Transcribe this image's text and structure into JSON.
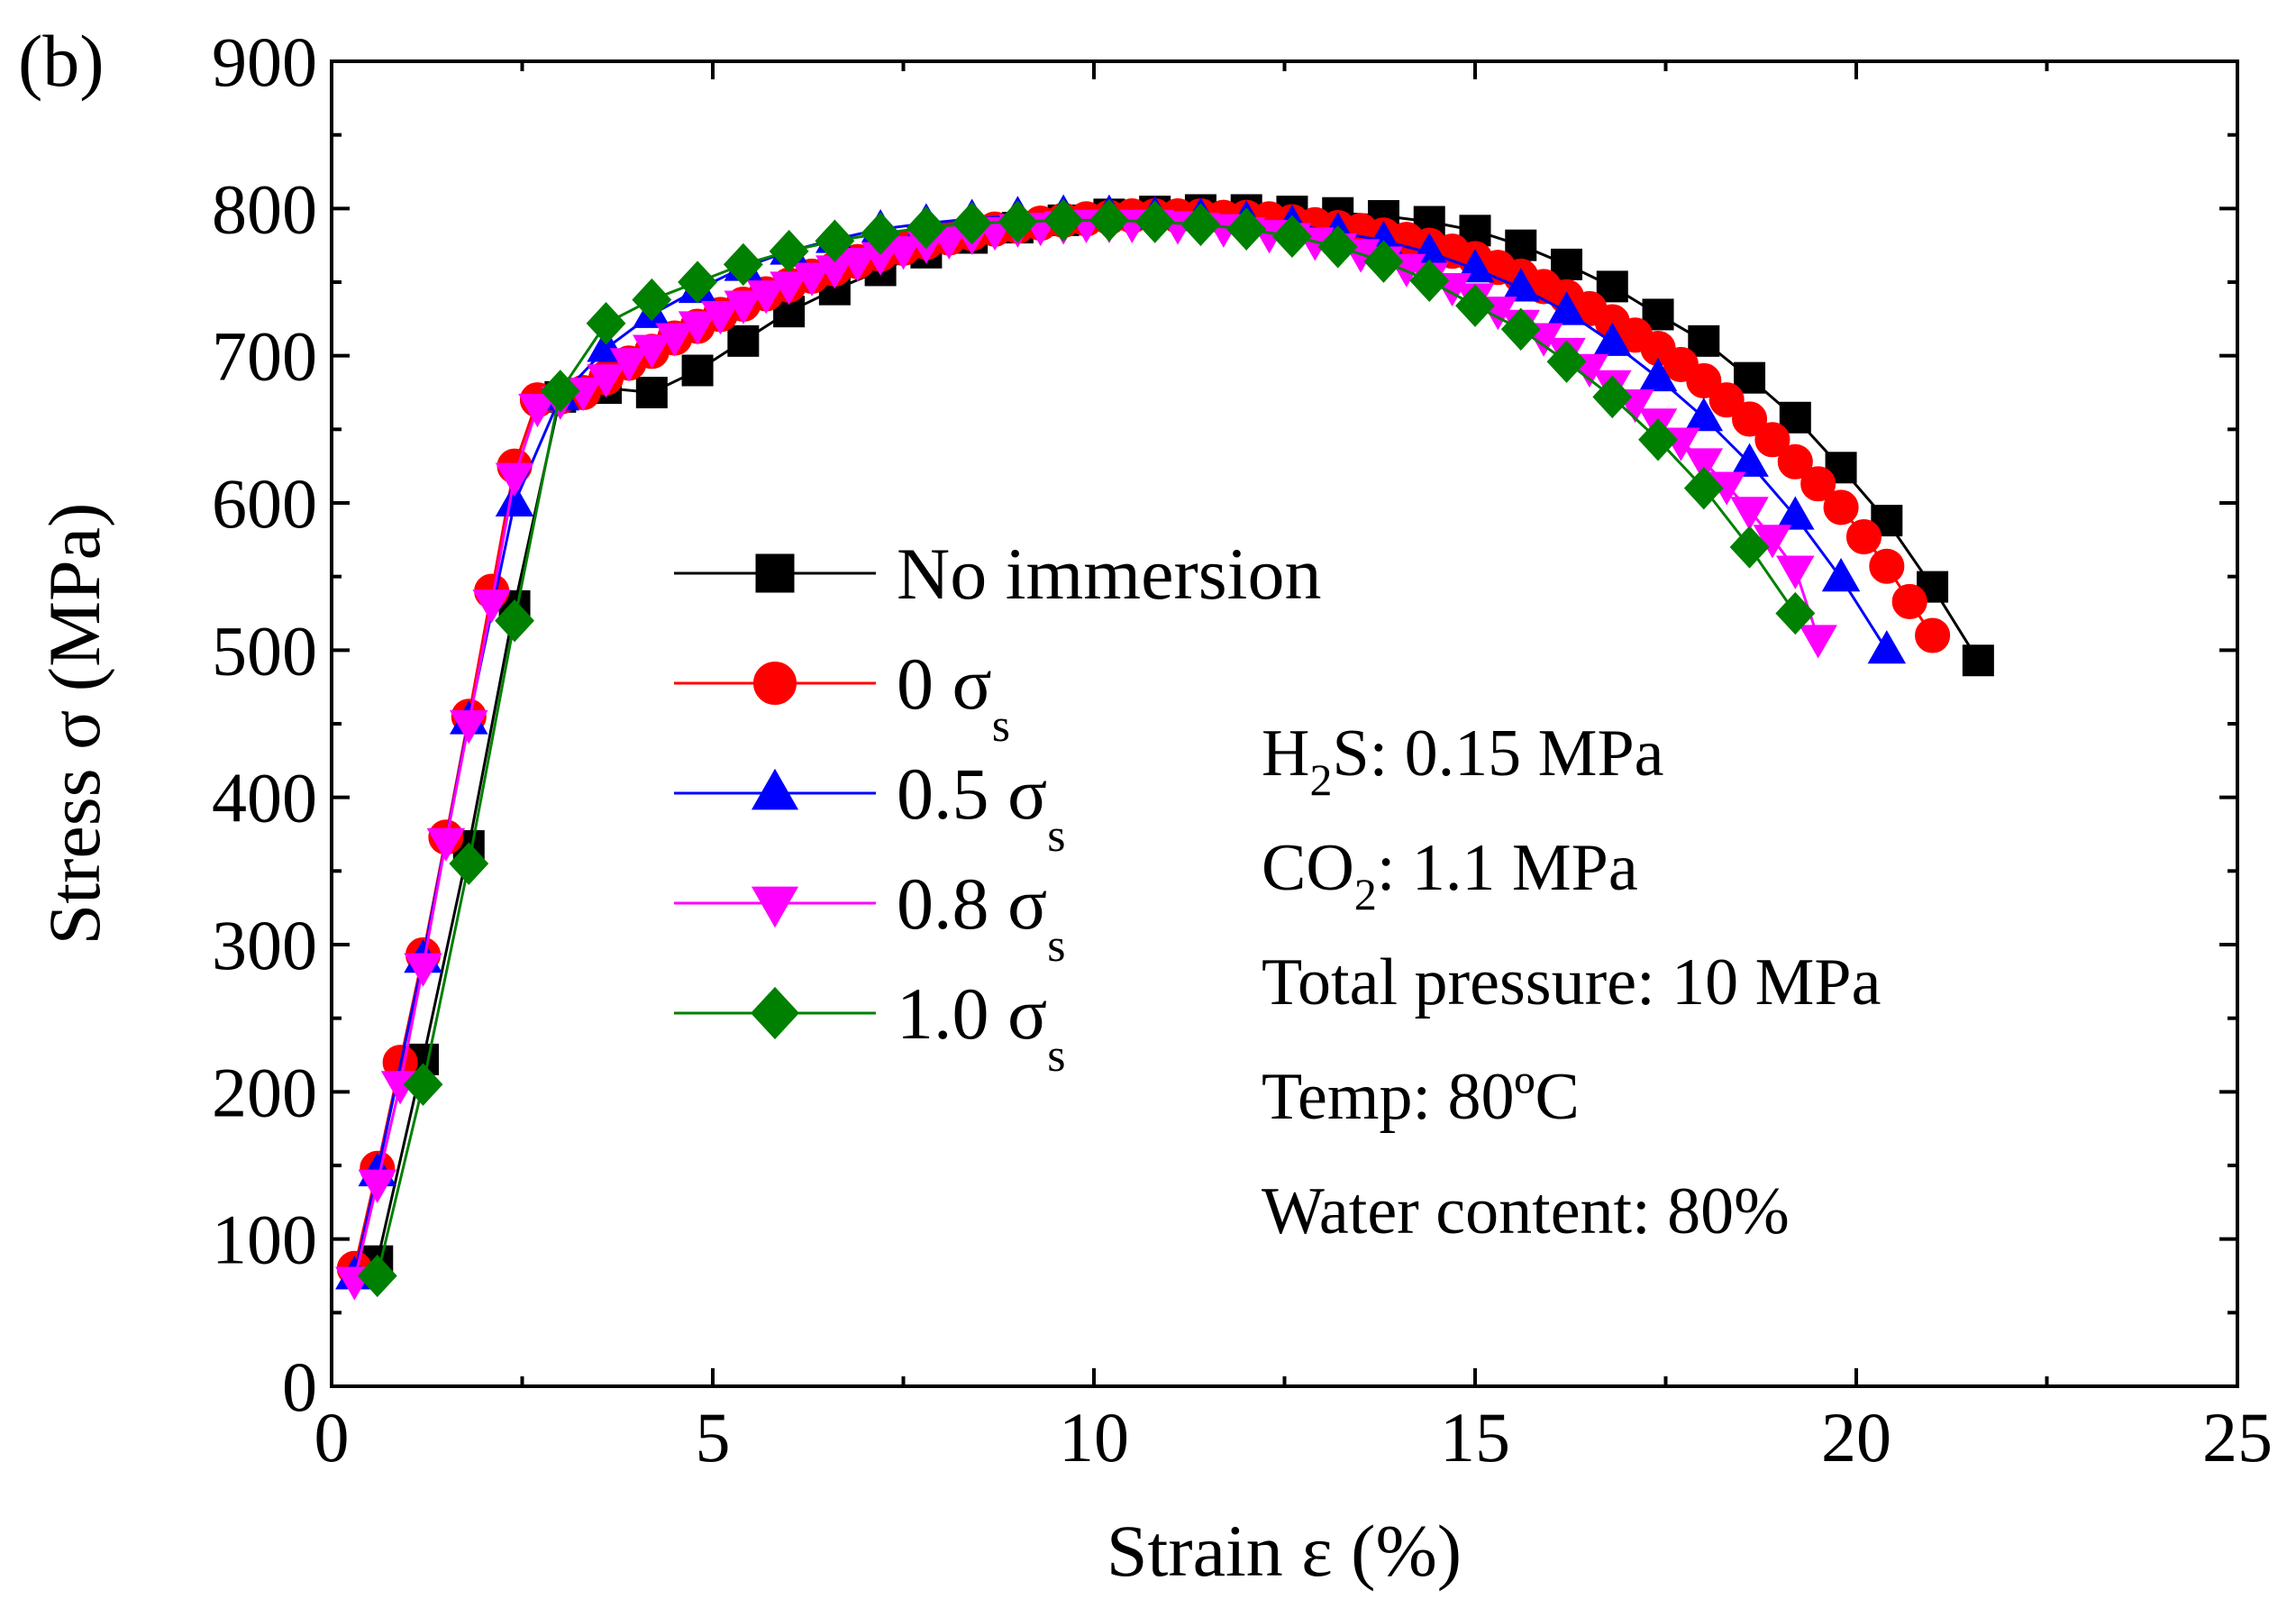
{
  "chart_data": {
    "type": "line",
    "panel_label": "(b)",
    "xlabel": "Strain ε (%)",
    "ylabel": "Stress σ (MPa)",
    "xlim": [
      0,
      25
    ],
    "ylim": [
      0,
      900
    ],
    "xticks": [
      0,
      5,
      10,
      15,
      20,
      25
    ],
    "yticks": [
      0,
      100,
      200,
      300,
      400,
      500,
      600,
      700,
      800,
      900
    ],
    "legend_position": "center-left",
    "series": [
      {
        "name": "No immersion",
        "name_base": "No immersion",
        "name_sub": "",
        "color": "#000000",
        "marker": "square",
        "x": [
          0.6,
          1.2,
          1.8,
          2.4,
          3.0,
          3.6,
          4.2,
          4.8,
          5.4,
          6.0,
          6.6,
          7.2,
          7.8,
          8.4,
          9.0,
          9.6,
          10.2,
          10.8,
          11.4,
          12.0,
          12.6,
          13.2,
          13.8,
          14.4,
          15.0,
          15.6,
          16.2,
          16.8,
          17.4,
          18.0,
          18.6,
          19.2,
          19.8,
          20.4,
          21.0,
          21.6
        ],
        "y": [
          85,
          222,
          367,
          530,
          672,
          678,
          675,
          690,
          710,
          730,
          745,
          758,
          770,
          780,
          787,
          792,
          796,
          798,
          799,
          799,
          798,
          797,
          795,
          791,
          785,
          775,
          762,
          747,
          728,
          710,
          685,
          658,
          624,
          588,
          543,
          493
        ]
      },
      {
        "name": "0 σs",
        "name_base": "0 σ",
        "name_sub": "s",
        "color": "#ff0000",
        "marker": "circle",
        "x": [
          0.3,
          0.6,
          0.9,
          1.2,
          1.5,
          1.8,
          2.1,
          2.4,
          2.7,
          3.0,
          3.3,
          3.6,
          3.9,
          4.2,
          4.5,
          4.8,
          5.1,
          5.4,
          5.7,
          6.0,
          6.3,
          6.6,
          6.9,
          7.2,
          7.5,
          7.8,
          8.1,
          8.4,
          8.7,
          9.0,
          9.3,
          9.6,
          9.9,
          10.2,
          10.5,
          10.8,
          11.1,
          11.4,
          11.7,
          12.0,
          12.3,
          12.6,
          12.9,
          13.2,
          13.5,
          13.8,
          14.1,
          14.4,
          14.7,
          15.0,
          15.3,
          15.6,
          15.9,
          16.2,
          16.5,
          16.8,
          17.1,
          17.4,
          17.7,
          18.0,
          18.3,
          18.6,
          18.9,
          19.2,
          19.5,
          19.8,
          20.1,
          20.4,
          20.7,
          21.0
        ],
        "y": [
          80,
          148,
          220,
          293,
          373,
          455,
          540,
          625,
          670,
          672,
          675,
          685,
          695,
          703,
          712,
          720,
          728,
          735,
          742,
          748,
          754,
          759,
          764,
          769,
          773,
          777,
          780,
          783,
          786,
          788,
          790,
          792,
          793,
          794,
          795,
          795,
          795,
          795,
          794,
          794,
          793,
          791,
          789,
          787,
          785,
          782,
          779,
          775,
          771,
          766,
          760,
          754,
          747,
          740,
          732,
          723,
          714,
          705,
          694,
          683,
          670,
          657,
          643,
          628,
          613,
          597,
          577,
          557,
          533,
          510
        ]
      },
      {
        "name": "0.5 σs",
        "name_base": "0.5 σ",
        "name_sub": "s",
        "color": "#0000ff",
        "marker": "triangle-up",
        "x": [
          0.3,
          0.6,
          1.2,
          1.8,
          2.4,
          3.0,
          3.6,
          4.2,
          4.8,
          5.4,
          6.0,
          6.6,
          7.2,
          7.8,
          8.4,
          9.0,
          9.6,
          10.2,
          10.8,
          11.4,
          12.0,
          12.6,
          13.2,
          13.8,
          14.4,
          15.0,
          15.6,
          16.2,
          16.8,
          17.4,
          18.0,
          18.6,
          19.2,
          19.8,
          20.4
        ],
        "y": [
          75,
          145,
          290,
          452,
          600,
          672,
          705,
          728,
          745,
          760,
          771,
          779,
          786,
          790,
          793,
          795,
          796,
          796,
          795,
          794,
          792,
          789,
          784,
          778,
          770,
          759,
          746,
          730,
          709,
          685,
          658,
          627,
          591,
          549,
          500
        ]
      },
      {
        "name": "0.8 σs",
        "name_base": "0.8 σ",
        "name_sub": "s",
        "color": "#ff00ff",
        "marker": "triangle-down",
        "x": [
          0.3,
          0.6,
          0.9,
          1.2,
          1.5,
          1.8,
          2.1,
          2.4,
          2.7,
          3.0,
          3.3,
          3.6,
          3.9,
          4.2,
          4.5,
          4.8,
          5.1,
          5.4,
          5.7,
          6.0,
          6.3,
          6.6,
          6.9,
          7.2,
          7.5,
          7.8,
          8.1,
          8.4,
          8.7,
          9.0,
          9.3,
          9.6,
          9.9,
          10.2,
          10.5,
          10.8,
          11.1,
          11.4,
          11.7,
          12.0,
          12.3,
          12.6,
          12.9,
          13.2,
          13.5,
          13.8,
          14.1,
          14.4,
          14.7,
          15.0,
          15.3,
          15.6,
          15.9,
          16.2,
          16.5,
          16.8,
          17.1,
          17.4,
          17.7,
          18.0,
          18.3,
          18.6,
          18.9,
          19.2,
          19.5
        ],
        "y": [
          72,
          138,
          205,
          285,
          370,
          450,
          532,
          618,
          665,
          670,
          676,
          685,
          696,
          705,
          713,
          721,
          728,
          735,
          742,
          748,
          754,
          759,
          764,
          768,
          772,
          776,
          779,
          782,
          785,
          787,
          788,
          789,
          790,
          790,
          790,
          790,
          789,
          788,
          787,
          785,
          783,
          781,
          778,
          774,
          770,
          765,
          760,
          754,
          747,
          740,
          731,
          722,
          713,
          703,
          692,
          681,
          668,
          655,
          642,
          628,
          612,
          595,
          576,
          555,
          508
        ]
      },
      {
        "name": "1.0 σs",
        "name_base": "1.0 σ",
        "name_sub": "s",
        "color": "#008000",
        "marker": "diamond",
        "x": [
          0.6,
          1.2,
          1.8,
          2.4,
          3.0,
          3.6,
          4.2,
          4.8,
          5.4,
          6.0,
          6.6,
          7.2,
          7.8,
          8.4,
          9.0,
          9.6,
          10.2,
          10.8,
          11.4,
          12.0,
          12.6,
          13.2,
          13.8,
          14.4,
          15.0,
          15.6,
          16.2,
          16.8,
          17.4,
          18.0,
          18.6,
          19.2
        ],
        "y": [
          75,
          205,
          355,
          520,
          676,
          722,
          738,
          750,
          762,
          771,
          778,
          783,
          787,
          790,
          791,
          792,
          792,
          791,
          789,
          786,
          781,
          774,
          764,
          751,
          734,
          718,
          696,
          672,
          643,
          610,
          570,
          525
        ]
      }
    ],
    "annotations": [
      {
        "base": "H",
        "sub": "2",
        "rest": "S: 0.15 MPa"
      },
      {
        "base": "CO",
        "sub": "2",
        "rest": ":   1.1 MPa"
      },
      {
        "base": "Total pressure: 10 MPa",
        "sub": "",
        "rest": ""
      },
      {
        "base": "Temp: 80ºC",
        "sub": "",
        "rest": ""
      },
      {
        "base": "Water content: 80%",
        "sub": "",
        "rest": ""
      }
    ]
  }
}
